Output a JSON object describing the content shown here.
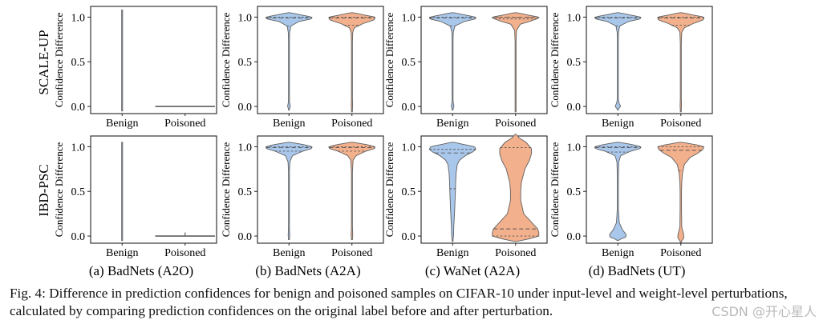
{
  "figure": {
    "caption": "Fig. 4: Difference in prediction confidences for benign and poisoned samples on CIFAR-10 under input-level and weight-level perturbations, calculated by comparing prediction confidences on the original label before and after perturbation.",
    "watermark": "CSDN @开心星人"
  },
  "colors": {
    "benign": "#a9c7ea",
    "poisoned": "#f3b08c",
    "outline": "#5f5f5f",
    "median": "#555555",
    "frame": "#222222"
  },
  "chart_data": [
    {
      "id": "a-top",
      "type": "violin",
      "column": "(a) BadNets (A2O)",
      "row": "SCALE-UP",
      "ylabel": "Confidence Difference",
      "categories": [
        "Benign",
        "Poisoned"
      ],
      "yticks": [
        "0.0",
        "0.5",
        "1.0"
      ],
      "ylim": [
        -0.08,
        1.12
      ],
      "style": "line",
      "series": [
        {
          "name": "Benign",
          "shape": [
            [
              -0.05,
              0.001
            ],
            [
              1.08,
              0.001
            ]
          ],
          "quartiles": []
        },
        {
          "name": "Poisoned",
          "shape": [
            [
              -0.004,
              0.9
            ],
            [
              0.004,
              0.9
            ]
          ],
          "quartiles": [
            0.0
          ]
        }
      ]
    },
    {
      "id": "b-top",
      "type": "violin",
      "column": "(b) BadNets (A2A)",
      "row": "SCALE-UP",
      "ylabel": "Confidence Difference",
      "categories": [
        "Benign",
        "Poisoned"
      ],
      "yticks": [
        "0.0",
        "0.5",
        "1.0"
      ],
      "ylim": [
        -0.08,
        1.12
      ],
      "style": "violin",
      "series": [
        {
          "name": "Benign",
          "shape": [
            [
              -0.04,
              0.002
            ],
            [
              -0.02,
              0.03
            ],
            [
              0.0,
              0.06
            ],
            [
              0.04,
              0.03
            ],
            [
              0.1,
              0.012
            ],
            [
              0.2,
              0.008
            ],
            [
              0.5,
              0.01
            ],
            [
              0.7,
              0.015
            ],
            [
              0.83,
              0.03
            ],
            [
              0.9,
              0.08
            ],
            [
              0.95,
              0.42
            ],
            [
              0.98,
              0.96
            ],
            [
              1.0,
              1.0
            ],
            [
              1.02,
              0.6
            ],
            [
              1.05,
              0.05
            ]
          ],
          "quartiles": [
            0.9,
            0.99,
            1.0
          ]
        },
        {
          "name": "Poisoned",
          "shape": [
            [
              -0.06,
              0.002
            ],
            [
              -0.04,
              0.015
            ],
            [
              0.0,
              0.03
            ],
            [
              0.1,
              0.02
            ],
            [
              0.3,
              0.012
            ],
            [
              0.5,
              0.012
            ],
            [
              0.7,
              0.018
            ],
            [
              0.83,
              0.035
            ],
            [
              0.88,
              0.1
            ],
            [
              0.93,
              0.5
            ],
            [
              0.97,
              0.96
            ],
            [
              1.0,
              1.0
            ],
            [
              1.02,
              0.6
            ],
            [
              1.05,
              0.05
            ]
          ],
          "quartiles": [
            0.91,
            0.99,
            1.0
          ]
        }
      ]
    },
    {
      "id": "c-top",
      "type": "violin",
      "column": "(c) WaNet (A2A)",
      "row": "SCALE-UP",
      "ylabel": "Confidence Difference",
      "categories": [
        "Benign",
        "Poisoned"
      ],
      "yticks": [
        "0.0",
        "0.5",
        "1.0"
      ],
      "ylim": [
        -0.08,
        1.12
      ],
      "style": "violin",
      "series": [
        {
          "name": "Benign",
          "shape": [
            [
              -0.04,
              0.002
            ],
            [
              -0.02,
              0.03
            ],
            [
              0.0,
              0.06
            ],
            [
              0.04,
              0.03
            ],
            [
              0.1,
              0.012
            ],
            [
              0.2,
              0.008
            ],
            [
              0.5,
              0.01
            ],
            [
              0.7,
              0.015
            ],
            [
              0.83,
              0.03
            ],
            [
              0.9,
              0.1
            ],
            [
              0.95,
              0.5
            ],
            [
              0.98,
              0.98
            ],
            [
              1.0,
              1.0
            ],
            [
              1.02,
              0.6
            ],
            [
              1.05,
              0.05
            ]
          ],
          "quartiles": [
            0.9,
            0.99,
            1.0
          ]
        },
        {
          "name": "Poisoned",
          "shape": [
            [
              -0.06,
              0.002
            ],
            [
              -0.04,
              0.012
            ],
            [
              0.0,
              0.02
            ],
            [
              0.1,
              0.015
            ],
            [
              0.3,
              0.012
            ],
            [
              0.5,
              0.012
            ],
            [
              0.7,
              0.016
            ],
            [
              0.85,
              0.04
            ],
            [
              0.92,
              0.2
            ],
            [
              0.96,
              0.7
            ],
            [
              0.99,
              1.0
            ],
            [
              1.0,
              1.0
            ],
            [
              1.02,
              0.6
            ],
            [
              1.05,
              0.05
            ]
          ],
          "quartiles": [
            0.98,
            1.0,
            1.0
          ]
        }
      ]
    },
    {
      "id": "d-top",
      "type": "violin",
      "column": "(d) BadNets (UT)",
      "row": "SCALE-UP",
      "ylabel": "Confidence Difference",
      "categories": [
        "Benign",
        "Poisoned"
      ],
      "yticks": [
        "0.0",
        "0.5",
        "1.0"
      ],
      "ylim": [
        -0.08,
        1.12
      ],
      "style": "violin",
      "series": [
        {
          "name": "Benign",
          "shape": [
            [
              -0.04,
              0.002
            ],
            [
              -0.02,
              0.05
            ],
            [
              0.0,
              0.12
            ],
            [
              0.04,
              0.05
            ],
            [
              0.1,
              0.012
            ],
            [
              0.2,
              0.008
            ],
            [
              0.5,
              0.01
            ],
            [
              0.7,
              0.015
            ],
            [
              0.83,
              0.03
            ],
            [
              0.9,
              0.08
            ],
            [
              0.95,
              0.45
            ],
            [
              0.98,
              0.96
            ],
            [
              1.0,
              1.0
            ],
            [
              1.02,
              0.6
            ],
            [
              1.05,
              0.05
            ]
          ],
          "quartiles": [
            0.9,
            0.99,
            1.0
          ]
        },
        {
          "name": "Poisoned",
          "shape": [
            [
              -0.06,
              0.002
            ],
            [
              -0.04,
              0.015
            ],
            [
              0.0,
              0.03
            ],
            [
              0.1,
              0.02
            ],
            [
              0.3,
              0.012
            ],
            [
              0.5,
              0.012
            ],
            [
              0.7,
              0.02
            ],
            [
              0.83,
              0.04
            ],
            [
              0.88,
              0.15
            ],
            [
              0.93,
              0.55
            ],
            [
              0.97,
              0.97
            ],
            [
              1.0,
              1.0
            ],
            [
              1.02,
              0.6
            ],
            [
              1.05,
              0.05
            ]
          ],
          "quartiles": [
            0.91,
            0.99,
            1.0
          ]
        }
      ]
    },
    {
      "id": "a-bottom",
      "type": "violin",
      "column": "(a) BadNets (A2O)",
      "row": "IBD-PSC",
      "ylabel": "Confidence Difference",
      "categories": [
        "Benign",
        "Poisoned"
      ],
      "yticks": [
        "0.0",
        "0.5",
        "1.0"
      ],
      "ylim": [
        -0.08,
        1.12
      ],
      "style": "line",
      "series": [
        {
          "name": "Benign",
          "shape": [
            [
              -0.05,
              0.001
            ],
            [
              0.98,
              0.002
            ],
            [
              1.01,
              0.006
            ],
            [
              1.04,
              0.002
            ],
            [
              1.05,
              0.001
            ]
          ],
          "quartiles": []
        },
        {
          "name": "Poisoned",
          "shape": [
            [
              -0.004,
              0.9
            ],
            [
              0.004,
              0.9
            ]
          ],
          "quartiles": [
            0.0
          ],
          "spike": 0.04
        }
      ]
    },
    {
      "id": "b-bottom",
      "type": "violin",
      "column": "(b) BadNets (A2A)",
      "row": "IBD-PSC",
      "ylabel": "Confidence Difference",
      "categories": [
        "Benign",
        "Poisoned"
      ],
      "yticks": [
        "0.0",
        "0.5",
        "1.0"
      ],
      "ylim": [
        -0.08,
        1.12
      ],
      "style": "violin",
      "series": [
        {
          "name": "Benign",
          "shape": [
            [
              -0.04,
              0.002
            ],
            [
              -0.02,
              0.02
            ],
            [
              0.0,
              0.035
            ],
            [
              0.1,
              0.02
            ],
            [
              0.3,
              0.012
            ],
            [
              0.5,
              0.012
            ],
            [
              0.7,
              0.016
            ],
            [
              0.83,
              0.04
            ],
            [
              0.9,
              0.15
            ],
            [
              0.95,
              0.6
            ],
            [
              0.98,
              0.97
            ],
            [
              1.0,
              1.0
            ],
            [
              1.02,
              0.7
            ],
            [
              1.05,
              0.05
            ]
          ],
          "quartiles": [
            0.95,
            0.99,
            1.0
          ]
        },
        {
          "name": "Poisoned",
          "shape": [
            [
              -0.04,
              0.002
            ],
            [
              -0.02,
              0.02
            ],
            [
              0.0,
              0.035
            ],
            [
              0.1,
              0.022
            ],
            [
              0.3,
              0.013
            ],
            [
              0.5,
              0.013
            ],
            [
              0.7,
              0.018
            ],
            [
              0.85,
              0.05
            ],
            [
              0.9,
              0.18
            ],
            [
              0.95,
              0.6
            ],
            [
              0.98,
              0.97
            ],
            [
              1.0,
              1.0
            ],
            [
              1.02,
              0.7
            ],
            [
              1.05,
              0.05
            ]
          ],
          "quartiles": [
            0.95,
            0.99,
            1.0
          ]
        }
      ]
    },
    {
      "id": "c-bottom",
      "type": "violin",
      "column": "(c) WaNet (A2A)",
      "row": "IBD-PSC",
      "ylabel": "Confidence Difference",
      "categories": [
        "Benign",
        "Poisoned"
      ],
      "yticks": [
        "0.0",
        "0.5",
        "1.0"
      ],
      "ylim": [
        -0.08,
        1.12
      ],
      "style": "violin",
      "series": [
        {
          "name": "Benign",
          "shape": [
            [
              -0.06,
              0.002
            ],
            [
              -0.04,
              0.02
            ],
            [
              0.0,
              0.04
            ],
            [
              0.1,
              0.05
            ],
            [
              0.3,
              0.09
            ],
            [
              0.5,
              0.12
            ],
            [
              0.6,
              0.13
            ],
            [
              0.7,
              0.15
            ],
            [
              0.8,
              0.2
            ],
            [
              0.85,
              0.3
            ],
            [
              0.9,
              0.55
            ],
            [
              0.94,
              0.85
            ],
            [
              0.97,
              1.0
            ],
            [
              1.0,
              0.95
            ],
            [
              1.03,
              0.4
            ],
            [
              1.05,
              0.05
            ]
          ],
          "quartiles": [
            0.53,
            0.93,
            0.97
          ]
        },
        {
          "name": "Poisoned",
          "shape": [
            [
              -0.06,
              0.05
            ],
            [
              -0.03,
              0.6
            ],
            [
              0.0,
              1.0
            ],
            [
              0.04,
              1.0
            ],
            [
              0.08,
              0.95
            ],
            [
              0.15,
              0.7
            ],
            [
              0.25,
              0.35
            ],
            [
              0.4,
              0.22
            ],
            [
              0.5,
              0.22
            ],
            [
              0.6,
              0.25
            ],
            [
              0.75,
              0.4
            ],
            [
              0.85,
              0.6
            ],
            [
              0.92,
              0.68
            ],
            [
              0.98,
              0.68
            ],
            [
              1.05,
              0.45
            ],
            [
              1.1,
              0.15
            ],
            [
              1.14,
              0.02
            ]
          ],
          "quartiles": [
            0.0,
            0.08,
            0.99
          ]
        }
      ]
    },
    {
      "id": "d-bottom",
      "type": "violin",
      "column": "(d) BadNets (UT)",
      "row": "IBD-PSC",
      "ylabel": "Confidence Difference",
      "categories": [
        "Benign",
        "Poisoned"
      ],
      "yticks": [
        "0.0",
        "0.5",
        "1.0"
      ],
      "ylim": [
        -0.08,
        1.12
      ],
      "style": "violin",
      "series": [
        {
          "name": "Benign",
          "shape": [
            [
              -0.05,
              0.01
            ],
            [
              -0.03,
              0.15
            ],
            [
              -0.01,
              0.35
            ],
            [
              0.02,
              0.35
            ],
            [
              0.07,
              0.2
            ],
            [
              0.15,
              0.06
            ],
            [
              0.3,
              0.025
            ],
            [
              0.5,
              0.02
            ],
            [
              0.7,
              0.025
            ],
            [
              0.83,
              0.04
            ],
            [
              0.9,
              0.12
            ],
            [
              0.95,
              0.55
            ],
            [
              0.98,
              0.97
            ],
            [
              1.0,
              1.0
            ],
            [
              1.02,
              0.7
            ],
            [
              1.05,
              0.05
            ]
          ],
          "quartiles": [
            0.94,
            0.99,
            1.0
          ]
        },
        {
          "name": "Poisoned",
          "shape": [
            [
              -0.07,
              0.005
            ],
            [
              -0.05,
              0.05
            ],
            [
              -0.02,
              0.13
            ],
            [
              0.02,
              0.12
            ],
            [
              0.1,
              0.04
            ],
            [
              0.3,
              0.03
            ],
            [
              0.5,
              0.03
            ],
            [
              0.6,
              0.04
            ],
            [
              0.7,
              0.07
            ],
            [
              0.8,
              0.15
            ],
            [
              0.88,
              0.4
            ],
            [
              0.93,
              0.75
            ],
            [
              0.97,
              0.95
            ],
            [
              1.0,
              1.0
            ],
            [
              1.02,
              0.7
            ],
            [
              1.05,
              0.05
            ]
          ],
          "quartiles": [
            0.73,
            0.96,
            1.0
          ]
        }
      ]
    }
  ]
}
